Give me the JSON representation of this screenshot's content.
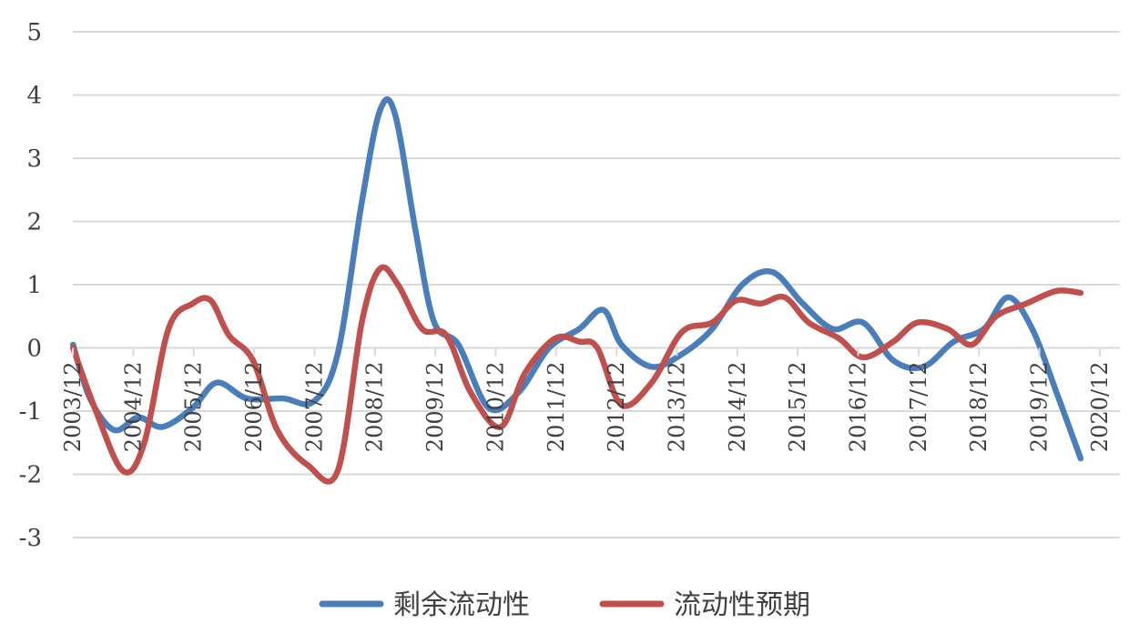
{
  "chart_data": {
    "type": "line",
    "title": "",
    "xlabel": "",
    "ylabel": "",
    "ylim": [
      -3,
      5
    ],
    "yticks": [
      "5",
      "4",
      "3",
      "2",
      "1",
      "0",
      "-1",
      "-2",
      "-3"
    ],
    "xlim": [
      2003.917,
      2021.25
    ],
    "xticks": [
      {
        "label": "2003/12",
        "x": 2003.917
      },
      {
        "label": "2004/12",
        "x": 2004.917
      },
      {
        "label": "2005/12",
        "x": 2005.917
      },
      {
        "label": "2006/12",
        "x": 2006.917
      },
      {
        "label": "2007/12",
        "x": 2007.917
      },
      {
        "label": "2008/12",
        "x": 2008.917
      },
      {
        "label": "2009/12",
        "x": 2009.917
      },
      {
        "label": "2010/12",
        "x": 2010.917
      },
      {
        "label": "2011/12",
        "x": 2011.917
      },
      {
        "label": "2012/12",
        "x": 2012.917
      },
      {
        "label": "2013/12",
        "x": 2013.917
      },
      {
        "label": "2014/12",
        "x": 2014.917
      },
      {
        "label": "2015/12",
        "x": 2015.917
      },
      {
        "label": "2016/12",
        "x": 2016.917
      },
      {
        "label": "2017/12",
        "x": 2017.917
      },
      {
        "label": "2018/12",
        "x": 2018.917
      },
      {
        "label": "2019/12",
        "x": 2019.917
      },
      {
        "label": "2020/12",
        "x": 2020.917
      }
    ],
    "grid": true,
    "legend_position": "bottom",
    "series": [
      {
        "name": "剩余流动性",
        "color": "#4a7ebb",
        "points": [
          [
            2003.92,
            0.05
          ],
          [
            2004.2,
            -0.8
          ],
          [
            2004.6,
            -1.3
          ],
          [
            2005.0,
            -1.1
          ],
          [
            2005.4,
            -1.25
          ],
          [
            2005.9,
            -0.95
          ],
          [
            2006.3,
            -0.55
          ],
          [
            2006.8,
            -0.8
          ],
          [
            2007.4,
            -0.8
          ],
          [
            2007.9,
            -0.85
          ],
          [
            2008.3,
            -0.1
          ],
          [
            2008.7,
            2.3
          ],
          [
            2009.0,
            3.75
          ],
          [
            2009.25,
            3.7
          ],
          [
            2009.6,
            1.8
          ],
          [
            2009.9,
            0.4
          ],
          [
            2010.3,
            0.05
          ],
          [
            2010.8,
            -0.95
          ],
          [
            2011.3,
            -0.7
          ],
          [
            2011.8,
            0.0
          ],
          [
            2012.3,
            0.3
          ],
          [
            2012.7,
            0.6
          ],
          [
            2013.0,
            0.05
          ],
          [
            2013.5,
            -0.3
          ],
          [
            2014.0,
            -0.1
          ],
          [
            2014.5,
            0.3
          ],
          [
            2015.0,
            1.0
          ],
          [
            2015.5,
            1.2
          ],
          [
            2016.0,
            0.7
          ],
          [
            2016.5,
            0.3
          ],
          [
            2017.0,
            0.4
          ],
          [
            2017.5,
            -0.2
          ],
          [
            2018.0,
            -0.3
          ],
          [
            2018.5,
            0.1
          ],
          [
            2019.0,
            0.3
          ],
          [
            2019.4,
            0.8
          ],
          [
            2019.8,
            0.3
          ],
          [
            2020.2,
            -0.7
          ],
          [
            2020.6,
            -1.75
          ]
        ]
      },
      {
        "name": "流动性预期",
        "color": "#c0504d",
        "points": [
          [
            2003.92,
            0.0
          ],
          [
            2004.3,
            -1.0
          ],
          [
            2004.75,
            -1.95
          ],
          [
            2005.1,
            -1.5
          ],
          [
            2005.5,
            0.3
          ],
          [
            2005.9,
            0.7
          ],
          [
            2006.2,
            0.75
          ],
          [
            2006.5,
            0.2
          ],
          [
            2006.9,
            -0.2
          ],
          [
            2007.3,
            -1.3
          ],
          [
            2007.8,
            -1.85
          ],
          [
            2008.3,
            -1.95
          ],
          [
            2008.7,
            0.4
          ],
          [
            2009.0,
            1.25
          ],
          [
            2009.3,
            1.0
          ],
          [
            2009.7,
            0.3
          ],
          [
            2010.1,
            0.2
          ],
          [
            2010.5,
            -0.7
          ],
          [
            2011.0,
            -1.25
          ],
          [
            2011.4,
            -0.4
          ],
          [
            2011.9,
            0.15
          ],
          [
            2012.3,
            0.1
          ],
          [
            2012.6,
            0.0
          ],
          [
            2013.0,
            -0.9
          ],
          [
            2013.5,
            -0.55
          ],
          [
            2014.0,
            0.25
          ],
          [
            2014.5,
            0.4
          ],
          [
            2014.9,
            0.75
          ],
          [
            2015.3,
            0.7
          ],
          [
            2015.7,
            0.8
          ],
          [
            2016.1,
            0.4
          ],
          [
            2016.6,
            0.15
          ],
          [
            2017.0,
            -0.15
          ],
          [
            2017.5,
            0.1
          ],
          [
            2017.9,
            0.4
          ],
          [
            2018.4,
            0.3
          ],
          [
            2018.8,
            0.05
          ],
          [
            2019.2,
            0.5
          ],
          [
            2019.7,
            0.7
          ],
          [
            2020.2,
            0.9
          ],
          [
            2020.6,
            0.87
          ]
        ]
      }
    ]
  }
}
